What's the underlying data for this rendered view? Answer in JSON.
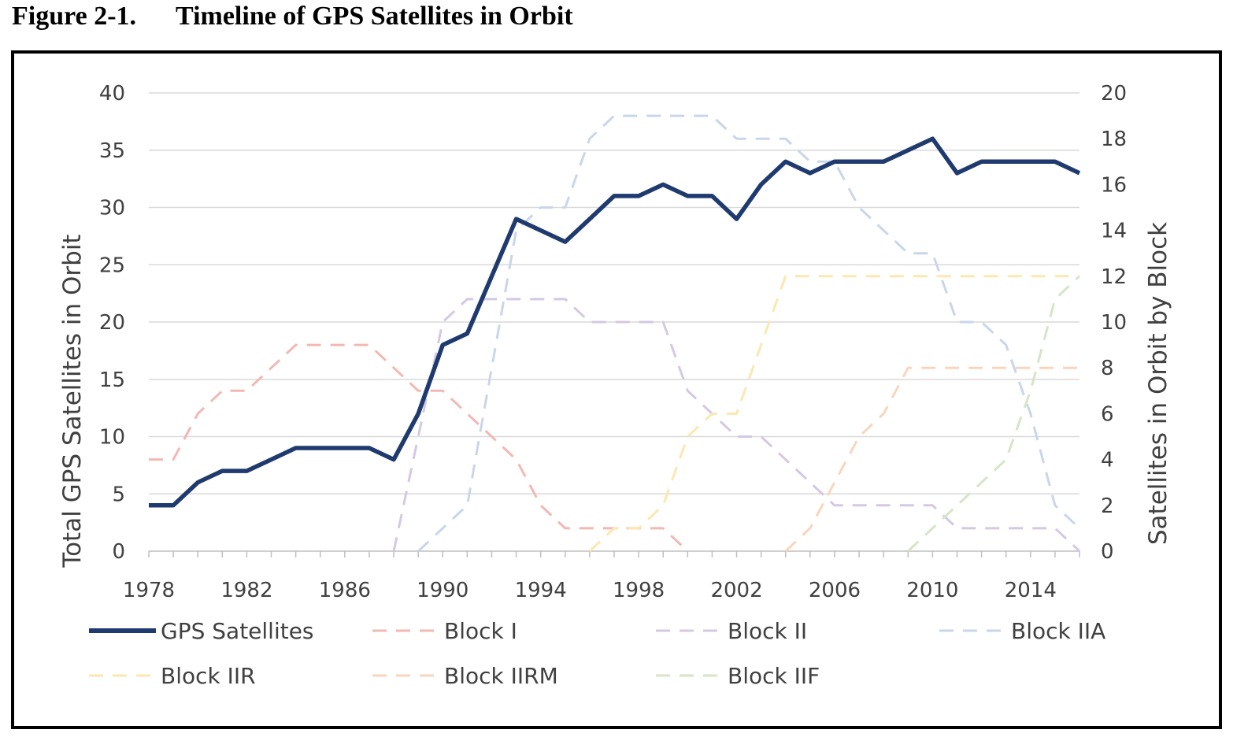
{
  "figure": {
    "number": "Figure 2-1.",
    "title": "Timeline of GPS Satellites in Orbit"
  },
  "chart_data": {
    "type": "line",
    "title": "",
    "xlabel": "",
    "ylabel_left": "Total GPS Satellites in Orbit",
    "ylabel_right": "Satellites in Orbit by Block",
    "x": [
      1978,
      1979,
      1980,
      1981,
      1982,
      1983,
      1984,
      1985,
      1986,
      1987,
      1988,
      1989,
      1990,
      1991,
      1992,
      1993,
      1994,
      1995,
      1996,
      1997,
      1998,
      1999,
      2000,
      2001,
      2002,
      2003,
      2004,
      2005,
      2006,
      2007,
      2008,
      2009,
      2010,
      2011,
      2012,
      2013,
      2014,
      2015,
      2016
    ],
    "xlim": [
      1978,
      2016
    ],
    "x_ticks": [
      1978,
      1982,
      1986,
      1990,
      1994,
      1998,
      2002,
      2006,
      2010,
      2014
    ],
    "ylim_left": [
      0,
      40
    ],
    "y_ticks_left": [
      0,
      5,
      10,
      15,
      20,
      25,
      30,
      35,
      40
    ],
    "ylim_right": [
      0,
      20
    ],
    "y_ticks_right": [
      0,
      2,
      4,
      6,
      8,
      10,
      12,
      14,
      16,
      18,
      20
    ],
    "grid": true,
    "legend_position": "bottom",
    "series": [
      {
        "name": "GPS Satellites",
        "axis": "left",
        "style": "solid",
        "color": "#1f3a6e",
        "values": [
          4,
          4,
          6,
          7,
          7,
          8,
          9,
          9,
          9,
          9,
          8,
          12,
          18,
          19,
          24,
          29,
          28,
          27,
          29,
          31,
          31,
          32,
          31,
          31,
          29,
          32,
          34,
          33,
          34,
          34,
          34,
          35,
          36,
          33,
          34,
          34,
          34,
          34,
          33
        ]
      },
      {
        "name": "Block I",
        "axis": "right",
        "style": "dashed",
        "color": "#f2b8b4",
        "values": [
          4,
          4,
          6,
          7,
          7,
          8,
          9,
          9,
          9,
          9,
          8,
          7,
          7,
          6,
          5,
          4,
          2,
          1,
          1,
          1,
          1,
          1,
          0,
          null,
          null,
          null,
          null,
          null,
          null,
          null,
          null,
          null,
          null,
          null,
          null,
          null,
          null,
          null,
          null
        ]
      },
      {
        "name": "Block II",
        "axis": "right",
        "style": "dashed",
        "color": "#d5c8e3",
        "values": [
          null,
          null,
          null,
          null,
          null,
          null,
          null,
          null,
          null,
          null,
          0,
          5,
          10,
          11,
          11,
          11,
          11,
          11,
          10,
          10,
          10,
          10,
          7,
          6,
          5,
          5,
          4,
          3,
          2,
          2,
          2,
          2,
          2,
          1,
          1,
          1,
          1,
          1,
          0
        ]
      },
      {
        "name": "Block IIA",
        "axis": "right",
        "style": "dashed",
        "color": "#c9d6ea",
        "values": [
          null,
          null,
          null,
          null,
          null,
          null,
          null,
          null,
          null,
          null,
          null,
          0,
          1,
          2,
          8,
          14,
          15,
          15,
          18,
          19,
          19,
          19,
          19,
          19,
          18,
          18,
          18,
          17,
          17,
          15,
          14,
          13,
          13,
          10,
          10,
          9,
          6,
          2,
          1
        ]
      },
      {
        "name": "Block IIR",
        "axis": "right",
        "style": "dashed",
        "color": "#fde7b0",
        "values": [
          null,
          null,
          null,
          null,
          null,
          null,
          null,
          null,
          null,
          null,
          null,
          null,
          null,
          null,
          null,
          null,
          null,
          null,
          0,
          1,
          1,
          2,
          5,
          6,
          6,
          9,
          12,
          12,
          12,
          12,
          12,
          12,
          12,
          12,
          12,
          12,
          12,
          12,
          12
        ]
      },
      {
        "name": "Block IIRM",
        "axis": "right",
        "style": "dashed",
        "color": "#f8d6bd",
        "values": [
          null,
          null,
          null,
          null,
          null,
          null,
          null,
          null,
          null,
          null,
          null,
          null,
          null,
          null,
          null,
          null,
          null,
          null,
          null,
          null,
          null,
          null,
          null,
          null,
          null,
          null,
          0,
          1,
          3,
          5,
          6,
          8,
          8,
          8,
          8,
          8,
          8,
          8,
          8
        ]
      },
      {
        "name": "Block IIF",
        "axis": "right",
        "style": "dashed",
        "color": "#d4e6c6",
        "values": [
          null,
          null,
          null,
          null,
          null,
          null,
          null,
          null,
          null,
          null,
          null,
          null,
          null,
          null,
          null,
          null,
          null,
          null,
          null,
          null,
          null,
          null,
          null,
          null,
          null,
          null,
          null,
          null,
          null,
          null,
          null,
          0,
          1,
          2,
          3,
          4,
          7,
          11,
          12
        ]
      }
    ]
  }
}
